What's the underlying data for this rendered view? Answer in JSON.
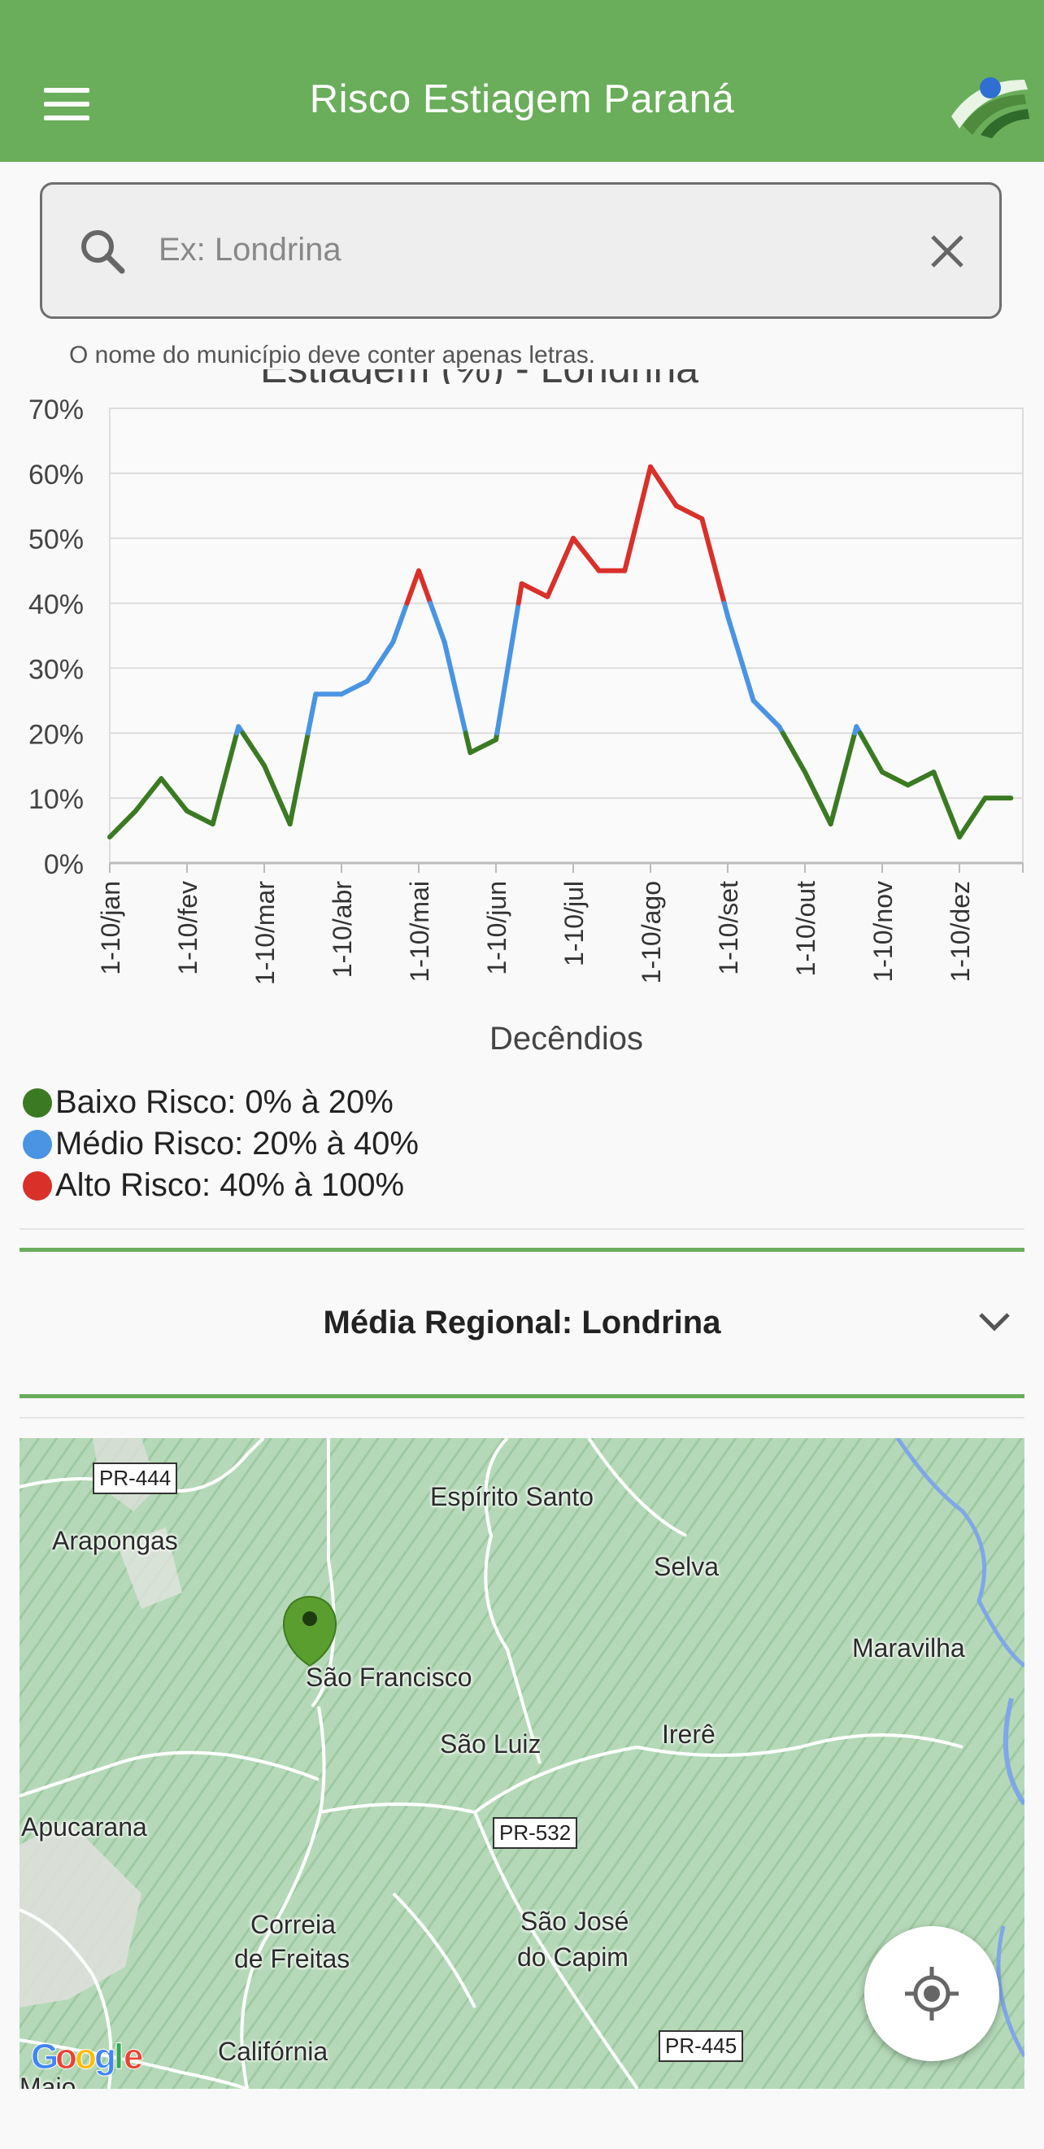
{
  "appbar": {
    "title": "Risco Estiagem Paraná"
  },
  "search": {
    "placeholder": "Ex: Londrina",
    "hint": "O nome do município deve conter apenas letras."
  },
  "chart_title_partial": "Estiagem (%) - Londrina",
  "chart_data": {
    "type": "line",
    "xlabel": "Decêndios",
    "ylabel": "",
    "ylim": [
      0,
      70
    ],
    "yticks": [
      "0%",
      "10%",
      "20%",
      "30%",
      "40%",
      "50%",
      "60%",
      "70%"
    ],
    "xtick_labels": [
      "1-10/jan",
      "1-10/fev",
      "1-10/mar",
      "1-10/abr",
      "1-10/mai",
      "1-10/jun",
      "1-10/jul",
      "1-10/ago",
      "1-10/set",
      "1-10/out",
      "1-10/nov",
      "1-10/dez"
    ],
    "values": [
      4,
      8,
      13,
      8,
      6,
      21,
      15,
      6,
      26,
      26,
      28,
      34,
      45,
      34,
      17,
      19,
      43,
      41,
      50,
      45,
      45,
      61,
      55,
      53,
      38,
      25,
      21,
      14,
      6,
      21,
      14,
      12,
      14,
      4,
      10,
      10
    ],
    "risk_colors": {
      "baixo": "#3b7a22",
      "medio": "#4a94e3",
      "alto": "#d9302a"
    },
    "grid": true
  },
  "legend": [
    {
      "label": "Baixo Risco: 0% à 20%",
      "color": "#3b7a22"
    },
    {
      "label": "Médio Risco: 20% à 40%",
      "color": "#4a94e3"
    },
    {
      "label": "Alto Risco: 40% à 100%",
      "color": "#d9302a"
    }
  ],
  "region": {
    "label": "Média Regional: Londrina"
  },
  "map": {
    "labels": [
      {
        "text": "Espírito Santo"
      },
      {
        "text": "Arapongas"
      },
      {
        "text": "Selva"
      },
      {
        "text": "Maravilha"
      },
      {
        "text": "São Francisco"
      },
      {
        "text": "São Luiz"
      },
      {
        "text": "Irerê"
      },
      {
        "text": "Apucarana"
      },
      {
        "text": "Correia"
      },
      {
        "text": "de Freitas"
      },
      {
        "text": "São José"
      },
      {
        "text": "do Capim"
      },
      {
        "text": "Califórnia"
      },
      {
        "text": "Maio"
      }
    ],
    "roads": [
      "PR-444",
      "PR-532",
      "PR-445"
    ],
    "attribution": "Google"
  },
  "colors": {
    "primary": "#6aad5b"
  }
}
